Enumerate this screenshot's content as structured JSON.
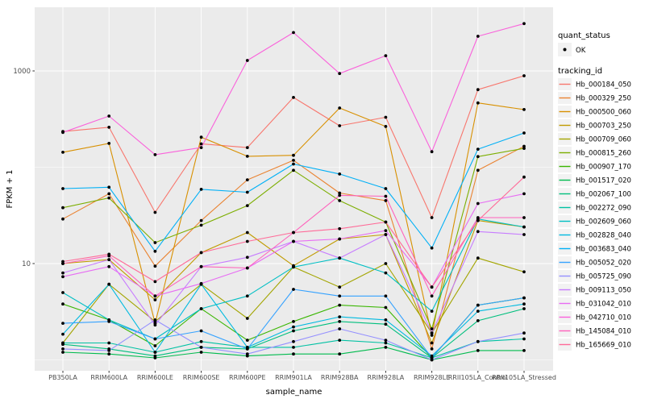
{
  "chart_data": {
    "type": "line",
    "title": "",
    "xlabel": "sample_name",
    "ylabel": "FPKM + 1",
    "y_scale": "log10",
    "y_tick_labels": [
      "1000",
      "10"
    ],
    "y_tick_values": [
      1000,
      10
    ],
    "y_minor_grid_values": [
      1,
      100
    ],
    "ylim_log": [
      0.85,
      4500
    ],
    "grid": true,
    "panel_background": "#EBEBEB",
    "grid_color": "#FFFFFF",
    "point_color": "#000000",
    "axis_text_color": "#4D4D4D",
    "categories": [
      "PB350LA",
      "RRIM600LA",
      "RRIM600LE",
      "RRIM600SE",
      "RRIM600PE",
      "RRIM901LA",
      "RRIM928BA",
      "RRIM928LA",
      "RRIM928LE",
      "RRII105LA_Control",
      "RRII105LA_Stressed"
    ],
    "series": [
      {
        "name": "Hb_000184_050",
        "color": "#F8766D",
        "values": [
          235,
          260,
          34,
          175,
          160,
          530,
          270,
          330,
          30,
          640,
          890
        ]
      },
      {
        "name": "Hb_000329_250",
        "color": "#EA8331",
        "values": [
          29,
          53,
          9.4,
          28,
          74,
          118,
          54,
          45,
          1.3,
          93,
          165
        ]
      },
      {
        "name": "Hb_000500_060",
        "color": "#D89000",
        "values": [
          143,
          177,
          2.4,
          205,
          130,
          133,
          412,
          265,
          1.8,
          465,
          397
        ]
      },
      {
        "name": "Hb_000703_250",
        "color": "#C09B00",
        "values": [
          10,
          11,
          4.2,
          13,
          21,
          9.5,
          18,
          20,
          1.5,
          28,
          24
        ]
      },
      {
        "name": "Hb_000709_060",
        "color": "#A3A500",
        "values": [
          1.5,
          6.1,
          2.5,
          6.1,
          2.7,
          9.2,
          5.7,
          10,
          1.9,
          11.4,
          8.2
        ]
      },
      {
        "name": "Hb_000815_260",
        "color": "#7CAE00",
        "values": [
          38,
          48,
          16.5,
          25,
          40,
          93,
          45,
          27,
          2.1,
          129,
          157
        ]
      },
      {
        "name": "Hb_000907_170",
        "color": "#39B600",
        "values": [
          3.8,
          2.6,
          1.4,
          3.4,
          1.6,
          2.5,
          3.7,
          3.5,
          1.05,
          3.7,
          4.4
        ]
      },
      {
        "name": "Hb_001517_020",
        "color": "#00BB4E",
        "values": [
          1.2,
          1.15,
          1.05,
          1.2,
          1.1,
          1.15,
          1.15,
          1.35,
          1.0,
          1.25,
          1.25
        ]
      },
      {
        "name": "Hb_002067_100",
        "color": "#00BF7D",
        "values": [
          1.45,
          1.3,
          1.1,
          1.35,
          1.3,
          2.0,
          2.5,
          2.35,
          1.05,
          2.55,
          3.4
        ]
      },
      {
        "name": "Hb_002272_090",
        "color": "#00C1A3",
        "values": [
          1.5,
          1.5,
          1.2,
          1.55,
          1.35,
          1.35,
          1.6,
          1.5,
          1.05,
          1.55,
          1.65
        ]
      },
      {
        "name": "Hb_002609_060",
        "color": "#00BFC4",
        "values": [
          5.0,
          2.6,
          1.65,
          3.4,
          4.6,
          9.2,
          11.4,
          8.0,
          3.2,
          29,
          24
        ]
      },
      {
        "name": "Hb_002828_040",
        "color": "#00BAE0",
        "values": [
          1.85,
          6.1,
          1.2,
          6.1,
          1.35,
          2.2,
          2.8,
          2.6,
          1.1,
          3.2,
          3.8
        ]
      },
      {
        "name": "Hb_003683_040",
        "color": "#00B0F6",
        "values": [
          60,
          62,
          13.4,
          59,
          55,
          108,
          85,
          60,
          14.5,
          154,
          227
        ]
      },
      {
        "name": "Hb_005052_020",
        "color": "#35A2FF",
        "values": [
          2.4,
          2.5,
          1.65,
          2.0,
          1.3,
          5.4,
          4.6,
          4.6,
          1.05,
          3.7,
          4.4
        ]
      },
      {
        "name": "Hb_005725_090",
        "color": "#9590FF",
        "values": [
          1.3,
          1.25,
          2.6,
          1.35,
          1.15,
          1.55,
          2.1,
          1.6,
          1.0,
          1.55,
          1.9
        ]
      },
      {
        "name": "Hb_009113_050",
        "color": "#C77CFF",
        "values": [
          8,
          11,
          2.3,
          9.3,
          11.6,
          17,
          11.4,
          20,
          1.9,
          21.5,
          20
        ]
      },
      {
        "name": "Hb_031042_010",
        "color": "#E76BF3",
        "values": [
          7.3,
          9.3,
          4.6,
          6.2,
          9.0,
          17,
          18,
          22,
          5.7,
          42,
          53
        ]
      },
      {
        "name": "Hb_042710_010",
        "color": "#FA62DB",
        "values": [
          230,
          340,
          135,
          160,
          1285,
          2500,
          940,
          1440,
          145,
          2290,
          3100
        ]
      },
      {
        "name": "Hb_145084_010",
        "color": "#FF62BC",
        "values": [
          10,
          12,
          4.6,
          9.3,
          9,
          21,
          51,
          50,
          4.6,
          30,
          30
        ]
      },
      {
        "name": "Hb_165669_010",
        "color": "#FF6A98",
        "values": [
          10.5,
          12.5,
          6.5,
          13,
          17,
          21,
          23,
          27,
          5.7,
          28,
          79
        ]
      }
    ],
    "legend": {
      "position": "right",
      "quant_status_title": "quant_status",
      "quant_status_items": [
        "OK"
      ],
      "tracking_id_title": "tracking_id",
      "key_background": "#F2F2F2"
    }
  }
}
